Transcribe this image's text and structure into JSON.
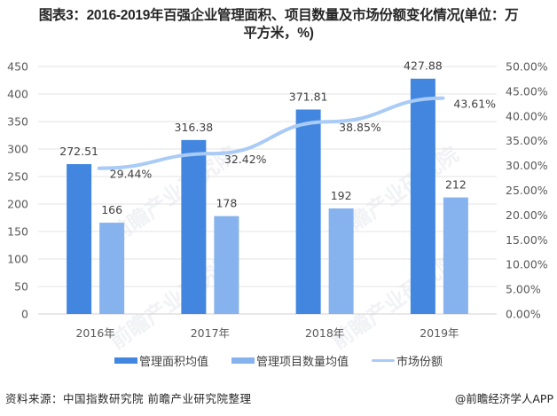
{
  "title": {
    "line1": "图表3：2016-2019年百强企业管理面积、项目数量及市场份额变化情况(单位：万",
    "line2": "平方米，%)"
  },
  "chart_data": {
    "type": "bar",
    "title": "图表3：2016-2019年百强企业管理面积、项目数量及市场份额变化情况(单位：万平方米，%)",
    "categories": [
      "2016年",
      "2017年",
      "2018年",
      "2019年"
    ],
    "series": [
      {
        "name": "管理面积均值",
        "type": "bar",
        "axis": "left",
        "color": "#4286E0",
        "values": [
          272.51,
          316.38,
          371.81,
          427.88
        ],
        "labels": [
          "272.51",
          "316.38",
          "371.81",
          "427.88"
        ]
      },
      {
        "name": "管理项目数量均值",
        "type": "bar",
        "axis": "left",
        "color": "#86B2EE",
        "values": [
          166,
          178,
          192,
          212
        ],
        "labels": [
          "166",
          "178",
          "192",
          "212"
        ]
      },
      {
        "name": "市场份额",
        "type": "line",
        "axis": "right",
        "color": "#A9CBF5",
        "values": [
          29.44,
          32.42,
          38.85,
          43.61
        ],
        "labels": [
          "29.44%",
          "32.42%",
          "38.85%",
          "43.61%"
        ]
      }
    ],
    "left_axis": {
      "ylim": [
        0,
        450
      ],
      "ticks": [
        "0",
        "50",
        "100",
        "150",
        "200",
        "250",
        "300",
        "350",
        "400",
        "450"
      ]
    },
    "right_axis": {
      "ylim": [
        0,
        50
      ],
      "ticks": [
        "0.00%",
        "5.00%",
        "10.00%",
        "15.00%",
        "20.00%",
        "25.00%",
        "30.00%",
        "35.00%",
        "40.00%",
        "45.00%",
        "50.00%"
      ]
    },
    "grid": true,
    "legend_position": "bottom"
  },
  "legend": {
    "items": [
      {
        "label": "管理面积均值",
        "color": "#4286E0"
      },
      {
        "label": "管理项目数量均值",
        "color": "#86B2EE"
      },
      {
        "label": "市场份额",
        "color": "#A9CBF5"
      }
    ]
  },
  "footer": {
    "source": "资料来源：中国指数研究院  前瞻产业研究院整理",
    "brand": "@前瞻经济学人APP"
  },
  "watermark": {
    "text": "前瞻产业研究院"
  }
}
